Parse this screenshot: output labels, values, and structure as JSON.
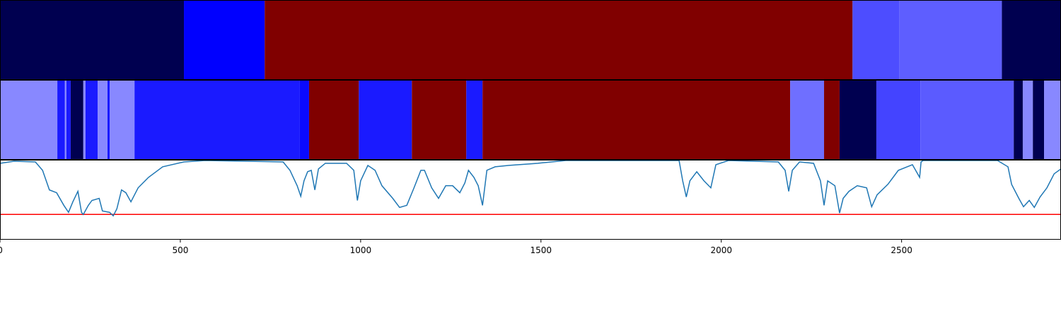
{
  "chart_data": [
    {
      "type": "segments",
      "xlim": [
        0,
        2942
      ],
      "segments": [
        {
          "start": 0,
          "end": 510,
          "color": "#000050"
        },
        {
          "start": 510,
          "end": 734,
          "color": "#0000ff"
        },
        {
          "start": 734,
          "end": 2364,
          "color": "#800000"
        },
        {
          "start": 2364,
          "end": 2493,
          "color": "#4d4dff"
        },
        {
          "start": 2493,
          "end": 2778,
          "color": "#5e5eff"
        },
        {
          "start": 2778,
          "end": 2942,
          "color": "#000050"
        }
      ]
    },
    {
      "type": "segments",
      "xlim": [
        0,
        2942
      ],
      "segments": [
        {
          "start": 0,
          "end": 159,
          "color": "#8888ff"
        },
        {
          "start": 159,
          "end": 180,
          "color": "#1a1aff"
        },
        {
          "start": 180,
          "end": 184,
          "color": "#8888ff"
        },
        {
          "start": 184,
          "end": 196,
          "color": "#1a1aff"
        },
        {
          "start": 196,
          "end": 231,
          "color": "#000050"
        },
        {
          "start": 231,
          "end": 237,
          "color": "#8888ff"
        },
        {
          "start": 237,
          "end": 271,
          "color": "#1a1aff"
        },
        {
          "start": 271,
          "end": 298,
          "color": "#8888ff"
        },
        {
          "start": 298,
          "end": 304,
          "color": "#1a1aff"
        },
        {
          "start": 304,
          "end": 373,
          "color": "#8888ff"
        },
        {
          "start": 373,
          "end": 830,
          "color": "#1a1aff"
        },
        {
          "start": 830,
          "end": 857,
          "color": "#0a0aff"
        },
        {
          "start": 857,
          "end": 995,
          "color": "#800000"
        },
        {
          "start": 995,
          "end": 1142,
          "color": "#1a1aff"
        },
        {
          "start": 1142,
          "end": 1293,
          "color": "#800000"
        },
        {
          "start": 1293,
          "end": 1338,
          "color": "#1a1aff"
        },
        {
          "start": 1338,
          "end": 2191,
          "color": "#800000"
        },
        {
          "start": 2191,
          "end": 2285,
          "color": "#6f6fff"
        },
        {
          "start": 2285,
          "end": 2328,
          "color": "#800000"
        },
        {
          "start": 2328,
          "end": 2430,
          "color": "#000050"
        },
        {
          "start": 2430,
          "end": 2552,
          "color": "#4444ff"
        },
        {
          "start": 2552,
          "end": 2811,
          "color": "#5b5bff"
        },
        {
          "start": 2811,
          "end": 2836,
          "color": "#000050"
        },
        {
          "start": 2836,
          "end": 2864,
          "color": "#8888ff"
        },
        {
          "start": 2864,
          "end": 2895,
          "color": "#000050"
        },
        {
          "start": 2895,
          "end": 2942,
          "color": "#8888ff"
        }
      ]
    },
    {
      "type": "line",
      "xlim": [
        0,
        2942
      ],
      "ylim": [
        0,
        113
      ],
      "color": "#1f77b4",
      "threshold": {
        "value": 35,
        "color": "#ff0000"
      },
      "xticks": [
        0,
        500,
        1000,
        1500,
        2000,
        2500
      ],
      "x": [
        0,
        39,
        98,
        118,
        137,
        157,
        177,
        190,
        202,
        216,
        226,
        231,
        245,
        255,
        275,
        284,
        304,
        314,
        324,
        337,
        349,
        363,
        383,
        412,
        451,
        510,
        569,
        785,
        804,
        824,
        834,
        843,
        853,
        863,
        873,
        883,
        902,
        961,
        981,
        991,
        1000,
        1020,
        1040,
        1059,
        1089,
        1108,
        1128,
        1148,
        1167,
        1177,
        1197,
        1216,
        1236,
        1255,
        1275,
        1289,
        1299,
        1314,
        1326,
        1338,
        1350,
        1373,
        1412,
        1491,
        1569,
        1883,
        1893,
        1903,
        1913,
        1932,
        1952,
        1971,
        1985,
        2020,
        2158,
        2177,
        2187,
        2197,
        2217,
        2256,
        2275,
        2285,
        2295,
        2315,
        2328,
        2338,
        2354,
        2377,
        2403,
        2417,
        2432,
        2462,
        2491,
        2530,
        2550,
        2554,
        2560,
        2766,
        2795,
        2805,
        2825,
        2838,
        2854,
        2868,
        2884,
        2903,
        2923,
        2942
      ],
      "values": [
        108,
        111,
        110,
        98,
        70,
        66,
        48,
        38,
        53,
        68,
        38,
        35,
        48,
        55,
        58,
        40,
        38,
        33,
        43,
        70,
        66,
        53,
        73,
        88,
        103,
        110,
        112,
        110,
        98,
        76,
        61,
        83,
        96,
        98,
        70,
        100,
        108,
        108,
        98,
        55,
        83,
        105,
        98,
        76,
        58,
        45,
        48,
        73,
        98,
        98,
        73,
        58,
        76,
        76,
        66,
        80,
        98,
        88,
        76,
        48,
        98,
        103,
        105,
        108,
        112,
        112,
        83,
        60,
        83,
        96,
        83,
        73,
        106,
        112,
        110,
        98,
        68,
        98,
        110,
        108,
        83,
        48,
        83,
        76,
        37,
        58,
        68,
        76,
        73,
        46,
        63,
        78,
        98,
        106,
        88,
        110,
        112,
        112,
        103,
        78,
        58,
        46,
        55,
        45,
        60,
        73,
        93,
        100
      ]
    }
  ]
}
